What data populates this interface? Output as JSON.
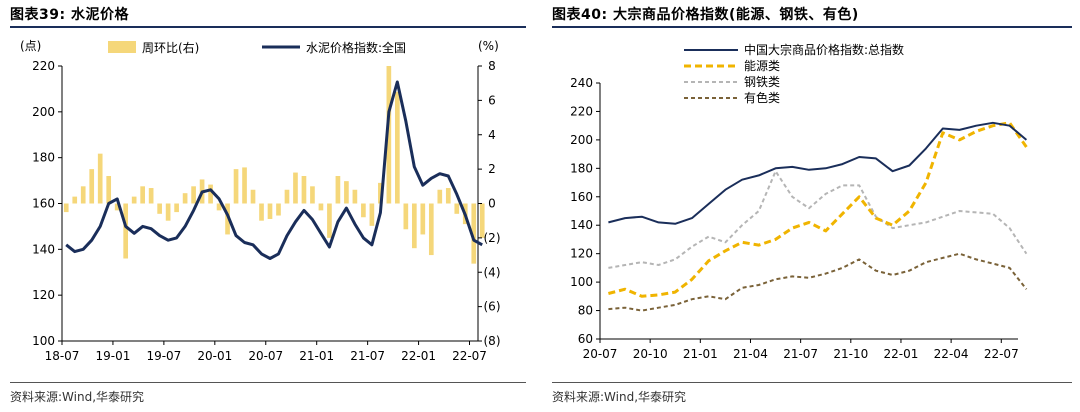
{
  "colors": {
    "navy": "#1a2e5a",
    "bar_yellow": "#f5d77a",
    "energy": "#f0b400",
    "steel": "#b5b5b5",
    "nonferrous": "#7a6238",
    "rule": "#1a2e5a"
  },
  "left": {
    "title": "图表39:  水泥价格",
    "source": "资料来源:Wind,华泰研究"
  },
  "right": {
    "title": "图表40:  大宗商品价格指数(能源、钢铁、有色)",
    "source": "资料来源:Wind,华泰研究"
  },
  "chart_data": [
    {
      "type": "line",
      "title": "图表39:  水泥价格",
      "y_left_unit": "(点)",
      "y_right_unit": "(%)",
      "ylim": [
        100,
        220
      ],
      "yticks": [
        "220",
        "200",
        "180",
        "160",
        "140",
        "120",
        "100"
      ],
      "y2lim": [
        -8,
        8
      ],
      "y2ticks": [
        "8",
        "6",
        "4",
        "2",
        "0",
        "(2)",
        "(4)",
        "(6)",
        "(8)"
      ],
      "xticks": [
        "18-07",
        "19-01",
        "19-07",
        "20-01",
        "20-07",
        "21-01",
        "21-07",
        "22-01",
        "22-07"
      ],
      "xlim": [
        "2018-07",
        "2022-08"
      ],
      "grid": false,
      "legend_position": "top",
      "series": [
        {
          "name": "周环比(右)",
          "kind": "bar",
          "axis": "right",
          "color": "#f5d77a",
          "x": [
            "2018-07",
            "2018-08",
            "2018-09",
            "2018-10",
            "2018-11",
            "2018-12",
            "2019-01",
            "2019-02",
            "2019-03",
            "2019-04",
            "2019-05",
            "2019-06",
            "2019-07",
            "2019-08",
            "2019-09",
            "2019-10",
            "2019-11",
            "2019-12",
            "2020-01",
            "2020-02",
            "2020-03",
            "2020-04",
            "2020-05",
            "2020-06",
            "2020-07",
            "2020-08",
            "2020-09",
            "2020-10",
            "2020-11",
            "2020-12",
            "2021-01",
            "2021-02",
            "2021-03",
            "2021-04",
            "2021-05",
            "2021-06",
            "2021-07",
            "2021-08",
            "2021-09",
            "2021-10",
            "2021-11",
            "2021-12",
            "2022-01",
            "2022-02",
            "2022-03",
            "2022-04",
            "2022-05",
            "2022-06",
            "2022-07",
            "2022-08"
          ],
          "values": [
            -0.5,
            0.4,
            1.0,
            2.0,
            2.9,
            1.6,
            -0.4,
            -3.2,
            0.4,
            1.0,
            0.9,
            -0.6,
            -1.0,
            -0.5,
            0.6,
            1.0,
            1.4,
            1.1,
            -0.4,
            -1.8,
            2.0,
            2.1,
            0.8,
            -1.0,
            -0.9,
            -0.7,
            0.8,
            1.8,
            1.6,
            1.0,
            -0.4,
            -2.0,
            1.6,
            1.3,
            0.8,
            -0.8,
            -1.3,
            1.2,
            8.0,
            6.5,
            -1.5,
            -2.6,
            -1.8,
            -3.0,
            0.8,
            0.9,
            -0.6,
            -1.2,
            -3.5,
            -2.0
          ]
        },
        {
          "name": "水泥价格指数:全国",
          "kind": "line",
          "axis": "left",
          "color": "#1a2e5a",
          "x": [
            "2018-07",
            "2018-08",
            "2018-09",
            "2018-10",
            "2018-11",
            "2018-12",
            "2019-01",
            "2019-02",
            "2019-03",
            "2019-04",
            "2019-05",
            "2019-06",
            "2019-07",
            "2019-08",
            "2019-09",
            "2019-10",
            "2019-11",
            "2019-12",
            "2020-01",
            "2020-02",
            "2020-03",
            "2020-04",
            "2020-05",
            "2020-06",
            "2020-07",
            "2020-08",
            "2020-09",
            "2020-10",
            "2020-11",
            "2020-12",
            "2021-01",
            "2021-02",
            "2021-03",
            "2021-04",
            "2021-05",
            "2021-06",
            "2021-07",
            "2021-08",
            "2021-09",
            "2021-10",
            "2021-11",
            "2021-12",
            "2022-01",
            "2022-02",
            "2022-03",
            "2022-04",
            "2022-05",
            "2022-06",
            "2022-07",
            "2022-08"
          ],
          "values": [
            142,
            139,
            140,
            144,
            150,
            160,
            162,
            150,
            147,
            150,
            149,
            146,
            144,
            145,
            150,
            157,
            165,
            166,
            162,
            155,
            146,
            143,
            142,
            138,
            136,
            138,
            146,
            152,
            157,
            153,
            147,
            141,
            152,
            158,
            151,
            145,
            142,
            156,
            200,
            213,
            196,
            176,
            168,
            171,
            173,
            172,
            164,
            155,
            144,
            142
          ]
        }
      ]
    },
    {
      "type": "line",
      "title": "图表40:  大宗商品价格指数(能源、钢铁、有色)",
      "ylim": [
        60,
        240
      ],
      "yticks": [
        "240",
        "220",
        "200",
        "180",
        "160",
        "140",
        "120",
        "100",
        "80",
        "60"
      ],
      "xticks": [
        "20-07",
        "20-10",
        "21-01",
        "21-04",
        "21-07",
        "21-10",
        "22-01",
        "22-04",
        "22-07"
      ],
      "xlim": [
        "2020-07",
        "2022-08"
      ],
      "grid": false,
      "legend_position": "top-left",
      "series": [
        {
          "name": "中国大宗商品价格指数:总指数",
          "color": "#1a2e5a",
          "dash": "solid",
          "x": [
            "2020-07",
            "2020-08",
            "2020-09",
            "2020-10",
            "2020-11",
            "2020-12",
            "2021-01",
            "2021-02",
            "2021-03",
            "2021-04",
            "2021-05",
            "2021-06",
            "2021-07",
            "2021-08",
            "2021-09",
            "2021-10",
            "2021-11",
            "2021-12",
            "2022-01",
            "2022-02",
            "2022-03",
            "2022-04",
            "2022-05",
            "2022-06",
            "2022-07",
            "2022-08"
          ],
          "values": [
            142,
            145,
            146,
            142,
            141,
            145,
            155,
            165,
            172,
            175,
            180,
            181,
            179,
            180,
            183,
            188,
            187,
            178,
            182,
            194,
            208,
            207,
            210,
            212,
            210,
            200
          ]
        },
        {
          "name": "能源类",
          "color": "#f0b400",
          "dash": "dashed",
          "x": [
            "2020-07",
            "2020-08",
            "2020-09",
            "2020-10",
            "2020-11",
            "2020-12",
            "2021-01",
            "2021-02",
            "2021-03",
            "2021-04",
            "2021-05",
            "2021-06",
            "2021-07",
            "2021-08",
            "2021-09",
            "2021-10",
            "2021-11",
            "2021-12",
            "2022-01",
            "2022-02",
            "2022-03",
            "2022-04",
            "2022-05",
            "2022-06",
            "2022-07",
            "2022-08"
          ],
          "values": [
            92,
            95,
            90,
            91,
            93,
            102,
            115,
            122,
            128,
            126,
            130,
            138,
            142,
            136,
            148,
            160,
            145,
            140,
            150,
            170,
            205,
            200,
            206,
            210,
            212,
            195
          ]
        },
        {
          "name": "钢铁类",
          "color": "#b5b5b5",
          "dash": "dashed",
          "x": [
            "2020-07",
            "2020-08",
            "2020-09",
            "2020-10",
            "2020-11",
            "2020-12",
            "2021-01",
            "2021-02",
            "2021-03",
            "2021-04",
            "2021-05",
            "2021-06",
            "2021-07",
            "2021-08",
            "2021-09",
            "2021-10",
            "2021-11",
            "2021-12",
            "2022-01",
            "2022-02",
            "2022-03",
            "2022-04",
            "2022-05",
            "2022-06",
            "2022-07",
            "2022-08"
          ],
          "values": [
            110,
            112,
            114,
            112,
            116,
            125,
            132,
            128,
            140,
            150,
            178,
            160,
            152,
            162,
            168,
            168,
            146,
            138,
            140,
            142,
            146,
            150,
            149,
            148,
            138,
            120
          ]
        },
        {
          "name": "有色类",
          "color": "#7a6238",
          "dash": "dashed",
          "x": [
            "2020-07",
            "2020-08",
            "2020-09",
            "2020-10",
            "2020-11",
            "2020-12",
            "2021-01",
            "2021-02",
            "2021-03",
            "2021-04",
            "2021-05",
            "2021-06",
            "2021-07",
            "2021-08",
            "2021-09",
            "2021-10",
            "2021-11",
            "2021-12",
            "2022-01",
            "2022-02",
            "2022-03",
            "2022-04",
            "2022-05",
            "2022-06",
            "2022-07",
            "2022-08"
          ],
          "values": [
            81,
            82,
            80,
            82,
            84,
            88,
            90,
            88,
            96,
            98,
            102,
            104,
            103,
            106,
            110,
            116,
            108,
            105,
            108,
            114,
            117,
            120,
            116,
            113,
            110,
            95
          ]
        }
      ]
    }
  ]
}
